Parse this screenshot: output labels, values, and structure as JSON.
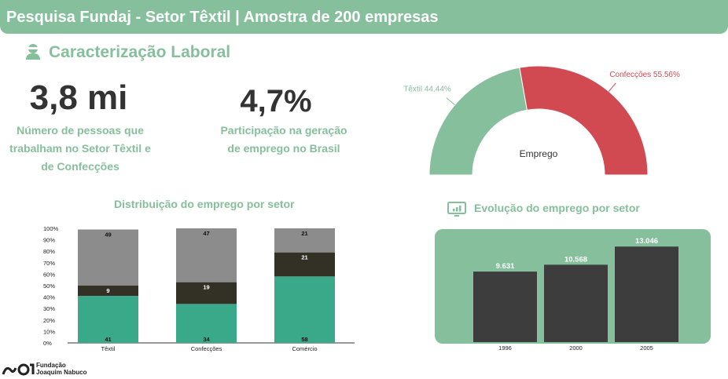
{
  "header": {
    "title": "Pesquisa Fundaj - Setor Têxtil | Amostra de 200 empresas"
  },
  "section": {
    "title": "Caracterização Laboral",
    "icon": "person-icon"
  },
  "kpis": [
    {
      "value": "3,8 mi",
      "label_lines": [
        "Número de pessoas que",
        "trabalham no Setor Têxtil e",
        "de Confecções"
      ]
    },
    {
      "value": "4,7%",
      "label_lines": [
        "Participação na geração",
        "de emprego no Brasil"
      ]
    }
  ],
  "colors": {
    "accent": "#86bf9b",
    "textil": "#86bf9b",
    "confeccoes": "#d14a52",
    "teal": "#39a98a",
    "dark": "#333026",
    "grey": "#8c8c8c",
    "bar_dark": "#3d3d3d"
  },
  "chart_data": [
    {
      "type": "pie",
      "title": "Emprego",
      "slices": [
        {
          "label": "Têxtil 44.44%",
          "name": "Têxtil",
          "value": 44.44
        },
        {
          "label": "Confecções 55.56%",
          "name": "Confecções",
          "value": 55.56
        }
      ]
    },
    {
      "type": "bar",
      "title": "Distribuição do emprego por setor",
      "categories": [
        "Têxtil",
        "Confecções",
        "Comércio"
      ],
      "series": [
        {
          "name": "segment-1",
          "values": [
            41,
            34,
            58
          ]
        },
        {
          "name": "segment-2",
          "values": [
            9,
            19,
            21
          ]
        },
        {
          "name": "segment-3",
          "values": [
            49,
            47,
            21
          ]
        }
      ],
      "ytick_labels": [
        "0%",
        "10%",
        "20%",
        "30%",
        "40%",
        "50%",
        "60%",
        "70%",
        "80%",
        "90%",
        "100%"
      ],
      "ylim": [
        0,
        100
      ]
    },
    {
      "type": "bar",
      "title": "Evolução do emprego por setor",
      "categories": [
        "1996",
        "2000",
        "2005"
      ],
      "values": [
        9631,
        10568,
        13046
      ],
      "value_labels": [
        "9.631",
        "10.568",
        "13.046"
      ],
      "ylim": [
        0,
        13500
      ]
    }
  ],
  "logo": {
    "line1": "Fundação",
    "line2": "Joaquim Nabuco"
  }
}
